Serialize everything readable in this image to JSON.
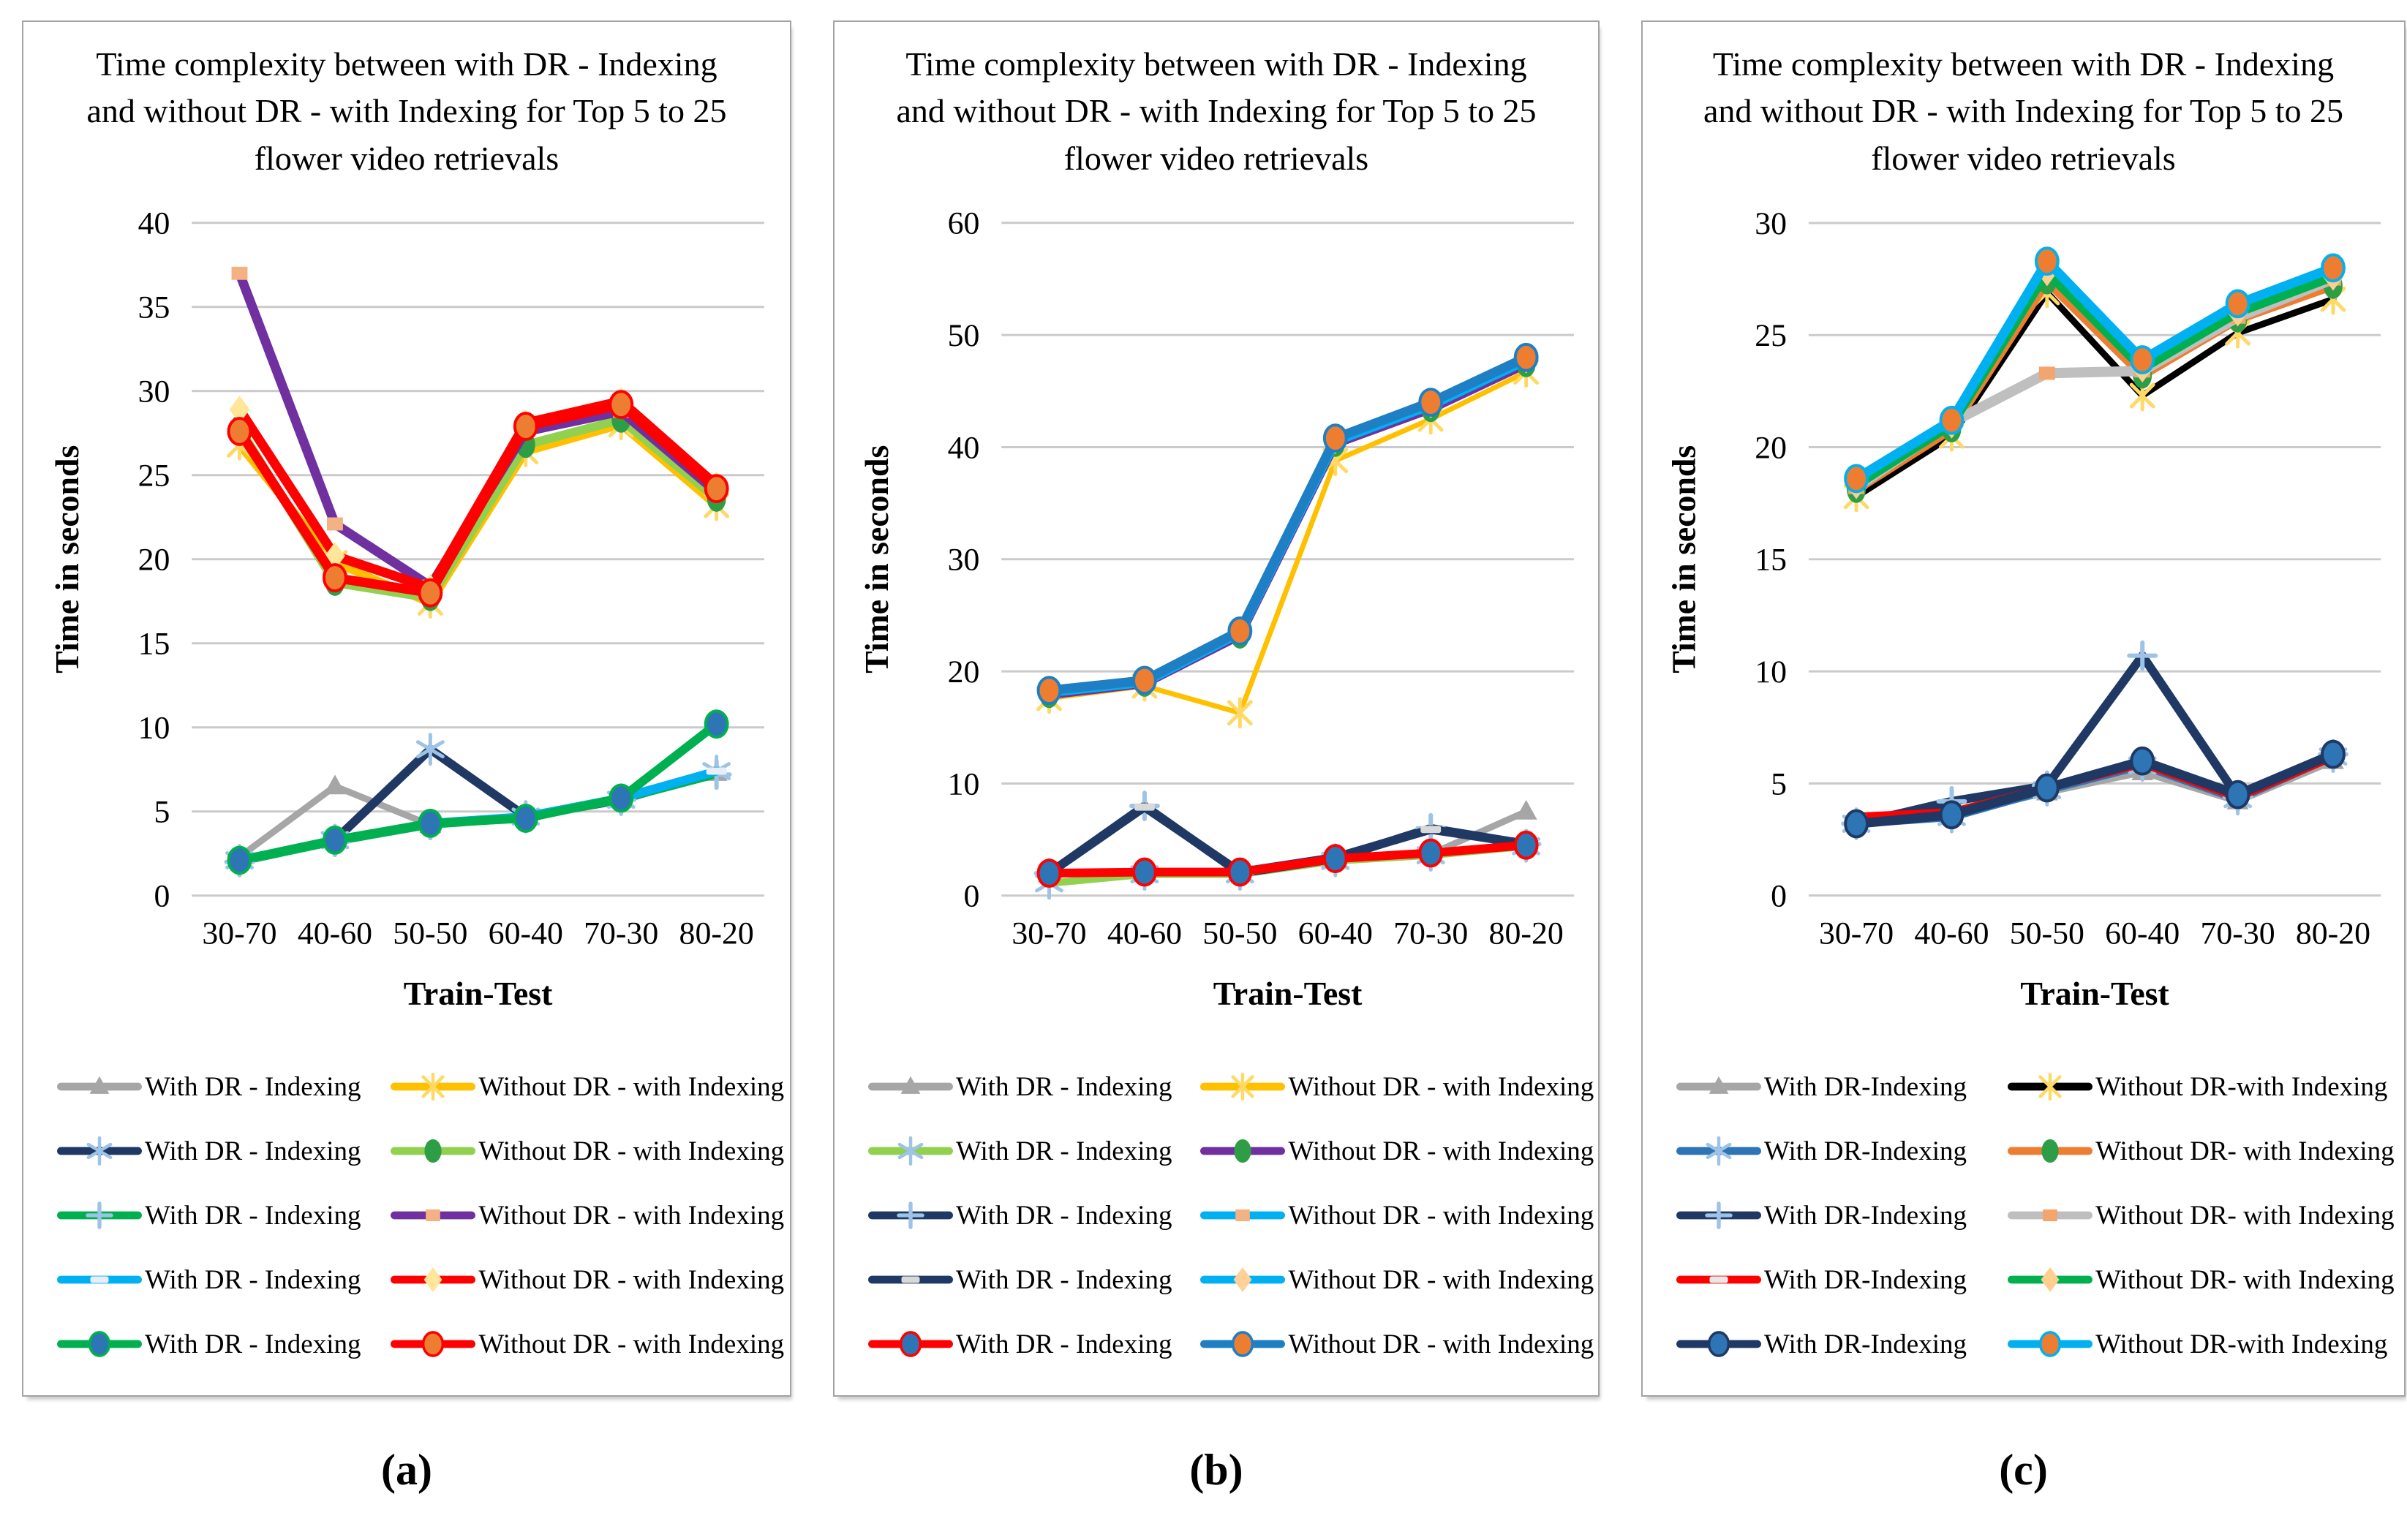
{
  "chart_data": [
    {
      "type": "line",
      "caption": "(a)",
      "title": "Time complexity between with DR - Indexing\nand without DR - with Indexing for Top 5 to 25\nflower video retrievals",
      "xlabel": "Train-Test",
      "ylabel": "Time in seconds",
      "categories": [
        "30-70",
        "40-60",
        "50-50",
        "60-40",
        "70-30",
        "80-20"
      ],
      "ylim": [
        0,
        40
      ],
      "yticks": [
        0,
        5,
        10,
        15,
        20,
        25,
        30,
        35,
        40
      ],
      "grid": true,
      "legend_position": "bottom",
      "series": [
        {
          "label": "With DR - Indexing",
          "column": "left",
          "color": "#a6a6a6",
          "marker": "triangle",
          "marker_color": "#a6a6a6",
          "width": 9,
          "values": [
            2.3,
            6.5,
            4.2,
            4.6,
            5.8,
            7.3
          ]
        },
        {
          "label": "With DR - Indexing",
          "column": "left",
          "color": "#1f3864",
          "marker": "asterisk",
          "marker_color": "#9dc3e6",
          "width": 12,
          "values": [
            2.1,
            3.3,
            8.7,
            4.7,
            5.7,
            7.4
          ]
        },
        {
          "label": "With DR - Indexing",
          "column": "left",
          "color": "#00b050",
          "marker": "plus",
          "marker_color": "#9dc3e6",
          "width": 10,
          "values": [
            2.0,
            3.2,
            4.2,
            4.6,
            5.7,
            7.2
          ]
        },
        {
          "label": "With DR - Indexing",
          "column": "left",
          "color": "#00b0f0",
          "marker": "dash",
          "marker_color": "#e8eef7",
          "width": 12,
          "values": [
            2.1,
            3.3,
            4.3,
            4.7,
            5.8,
            7.4
          ]
        },
        {
          "label": "With DR - Indexing",
          "column": "left",
          "color": "#00b050",
          "marker": "circle",
          "marker_color": "#2e75b6",
          "width": 12,
          "values": [
            2.1,
            3.3,
            4.3,
            4.6,
            5.8,
            10.2
          ]
        },
        {
          "label": "Without DR - with Indexing",
          "column": "right",
          "color": "#ffc000",
          "marker": "x",
          "marker_color": "#ffd966",
          "width": 11,
          "values": [
            26.8,
            19.8,
            17.4,
            26.4,
            28.0,
            23.2
          ]
        },
        {
          "label": "Without DR - with Indexing",
          "column": "right",
          "color": "#92d050",
          "marker": "oval",
          "marker_color": "#2e9e46",
          "width": 12,
          "values": [
            27.8,
            18.6,
            17.7,
            26.8,
            28.3,
            23.6
          ]
        },
        {
          "label": "Without DR - with Indexing",
          "column": "right",
          "color": "#7030a0",
          "marker": "square",
          "marker_color": "#f4b183",
          "width": 13,
          "values": [
            37.0,
            22.1,
            18.4,
            27.6,
            28.8,
            24.0
          ]
        },
        {
          "label": "Without DR - with Indexing",
          "column": "right",
          "color": "#ff0000",
          "marker": "diamond",
          "marker_color": "#ffe699",
          "width": 13,
          "values": [
            28.9,
            20.2,
            18.3,
            28.1,
            29.4,
            24.4
          ]
        },
        {
          "label": "Without DR - with Indexing",
          "column": "right",
          "color": "#ff0000",
          "marker": "circle",
          "marker_color": "#ed7d31",
          "width": 13,
          "values": [
            27.6,
            18.9,
            18.0,
            27.9,
            29.2,
            24.2
          ]
        }
      ]
    },
    {
      "type": "line",
      "caption": "(b)",
      "title": "Time complexity between with DR - Indexing\nand without DR - with Indexing for Top 5 to 25\nflower video retrievals",
      "xlabel": "Train-Test",
      "ylabel": "Time in seconds",
      "categories": [
        "30-70",
        "40-60",
        "50-50",
        "60-40",
        "70-30",
        "80-20"
      ],
      "ylim": [
        0,
        60
      ],
      "yticks": [
        0,
        10,
        20,
        30,
        40,
        50,
        60
      ],
      "grid": true,
      "legend_position": "bottom",
      "series": [
        {
          "label": "With DR - Indexing",
          "column": "left",
          "color": "#a6a6a6",
          "marker": "triangle",
          "marker_color": "#a6a6a6",
          "width": 9,
          "values": [
            1.9,
            2.0,
            2.0,
            3.2,
            3.7,
            7.5
          ]
        },
        {
          "label": "With DR - Indexing",
          "column": "left",
          "color": "#92d050",
          "marker": "asterisk",
          "marker_color": "#9dc3e6",
          "width": 10,
          "values": [
            1.1,
            1.9,
            1.9,
            3.1,
            3.6,
            4.4
          ]
        },
        {
          "label": "With DR - Indexing",
          "column": "left",
          "color": "#1f3864",
          "marker": "plus",
          "marker_color": "#9dc3e6",
          "width": 12,
          "values": [
            2.0,
            8.0,
            2.0,
            3.3,
            6.0,
            4.6
          ]
        },
        {
          "label": "With DR - Indexing",
          "column": "left",
          "color": "#1f3864",
          "marker": "dash",
          "marker_color": "#d9d9d9",
          "width": 12,
          "values": [
            2.0,
            7.9,
            2.1,
            3.4,
            5.9,
            4.6
          ]
        },
        {
          "label": "With DR - Indexing",
          "column": "left",
          "color": "#ff0000",
          "marker": "circle",
          "marker_color": "#2e75b6",
          "width": 12,
          "values": [
            2.0,
            2.1,
            2.1,
            3.3,
            3.8,
            4.5
          ]
        },
        {
          "label": "Without DR - with Indexing",
          "column": "right",
          "color": "#ffc000",
          "marker": "x",
          "marker_color": "#ffd966",
          "width": 7,
          "values": [
            17.6,
            18.7,
            16.3,
            38.8,
            42.5,
            46.7
          ]
        },
        {
          "label": "Without DR - with Indexing",
          "column": "right",
          "color": "#7030a0",
          "marker": "oval",
          "marker_color": "#2e9e46",
          "width": 12,
          "values": [
            17.9,
            18.9,
            23.2,
            40.3,
            43.4,
            47.4
          ]
        },
        {
          "label": "Without DR - with Indexing",
          "column": "right",
          "color": "#00b0f0",
          "marker": "square",
          "marker_color": "#f4b183",
          "width": 12,
          "values": [
            18.1,
            19.0,
            23.4,
            40.5,
            43.7,
            47.7
          ]
        },
        {
          "label": "Without DR - with Indexing",
          "column": "right",
          "color": "#00b0f0",
          "marker": "diamond",
          "marker_color": "#ffd199",
          "width": 12,
          "values": [
            18.2,
            19.1,
            23.5,
            40.6,
            43.8,
            47.8
          ]
        },
        {
          "label": "Without DR - with Indexing",
          "column": "right",
          "color": "#1e7fc4",
          "marker": "circle",
          "marker_color": "#ed7d31",
          "width": 13,
          "values": [
            18.3,
            19.2,
            23.6,
            40.8,
            44.0,
            48.0
          ]
        }
      ]
    },
    {
      "type": "line",
      "caption": "(c)",
      "title": "Time complexity between with DR - Indexing\nand without DR - with Indexing for Top 5 to 25\nflower video retrievals",
      "xlabel": "Train-Test",
      "ylabel": "Time in seconds",
      "categories": [
        "30-70",
        "40-60",
        "50-50",
        "60-40",
        "70-30",
        "80-20"
      ],
      "ylim": [
        0,
        30
      ],
      "yticks": [
        0,
        5,
        10,
        15,
        20,
        25,
        30
      ],
      "grid": true,
      "legend_position": "bottom",
      "series": [
        {
          "label": "With DR-Indexing",
          "column": "left",
          "color": "#a6a6a6",
          "marker": "triangle",
          "marker_color": "#a6a6a6",
          "width": 9,
          "values": [
            3.4,
            3.6,
            4.6,
            5.5,
            4.2,
            6.0
          ]
        },
        {
          "label": "With DR-Indexing",
          "column": "left",
          "color": "#2e75b6",
          "marker": "asterisk",
          "marker_color": "#9dc3e6",
          "width": 11,
          "values": [
            3.2,
            3.5,
            4.7,
            5.8,
            4.3,
            6.2
          ]
        },
        {
          "label": "With DR-Indexing",
          "column": "left",
          "color": "#1f3864",
          "marker": "plus",
          "marker_color": "#9dc3e6",
          "width": 12,
          "values": [
            3.2,
            4.2,
            4.9,
            10.7,
            4.4,
            6.3
          ]
        },
        {
          "label": "With DR-Indexing",
          "column": "left",
          "color": "#ff0000",
          "marker": "dash",
          "marker_color": "#e8e8e8",
          "width": 12,
          "values": [
            3.5,
            3.7,
            4.8,
            5.9,
            4.4,
            6.2
          ]
        },
        {
          "label": "With DR-Indexing",
          "column": "left",
          "color": "#1f3864",
          "marker": "circle",
          "marker_color": "#2e75b6",
          "width": 13,
          "values": [
            3.2,
            3.6,
            4.8,
            6.0,
            4.5,
            6.3
          ]
        },
        {
          "label": "Without DR-with Indexing",
          "column": "right",
          "color": "#000000",
          "marker": "x",
          "marker_color": "#ffd966",
          "width": 9,
          "values": [
            17.8,
            20.5,
            26.9,
            22.3,
            25.1,
            26.6
          ]
        },
        {
          "label": "Without DR- with Indexing",
          "column": "right",
          "color": "#ed7d31",
          "marker": "oval",
          "marker_color": "#2e9e46",
          "width": 12,
          "values": [
            18.1,
            20.8,
            27.4,
            23.2,
            25.7,
            27.2
          ]
        },
        {
          "label": "Without DR- with Indexing",
          "column": "right",
          "color": "#bfbfbf",
          "marker": "square",
          "marker_color": "#f4a56e",
          "width": 14,
          "values": [
            18.2,
            21.1,
            23.3,
            23.4,
            25.8,
            27.5
          ]
        },
        {
          "label": "Without DR- with Indexing",
          "column": "right",
          "color": "#00b050",
          "marker": "diamond",
          "marker_color": "#ffcf8f",
          "width": 12,
          "values": [
            18.3,
            21.0,
            27.8,
            23.5,
            26.0,
            27.6
          ]
        },
        {
          "label": "Without DR-with Indexing",
          "column": "right",
          "color": "#00b0f0",
          "marker": "circle",
          "marker_color": "#ed7d31",
          "width": 13,
          "values": [
            18.6,
            21.2,
            28.3,
            23.9,
            26.4,
            28.0
          ]
        }
      ]
    }
  ]
}
